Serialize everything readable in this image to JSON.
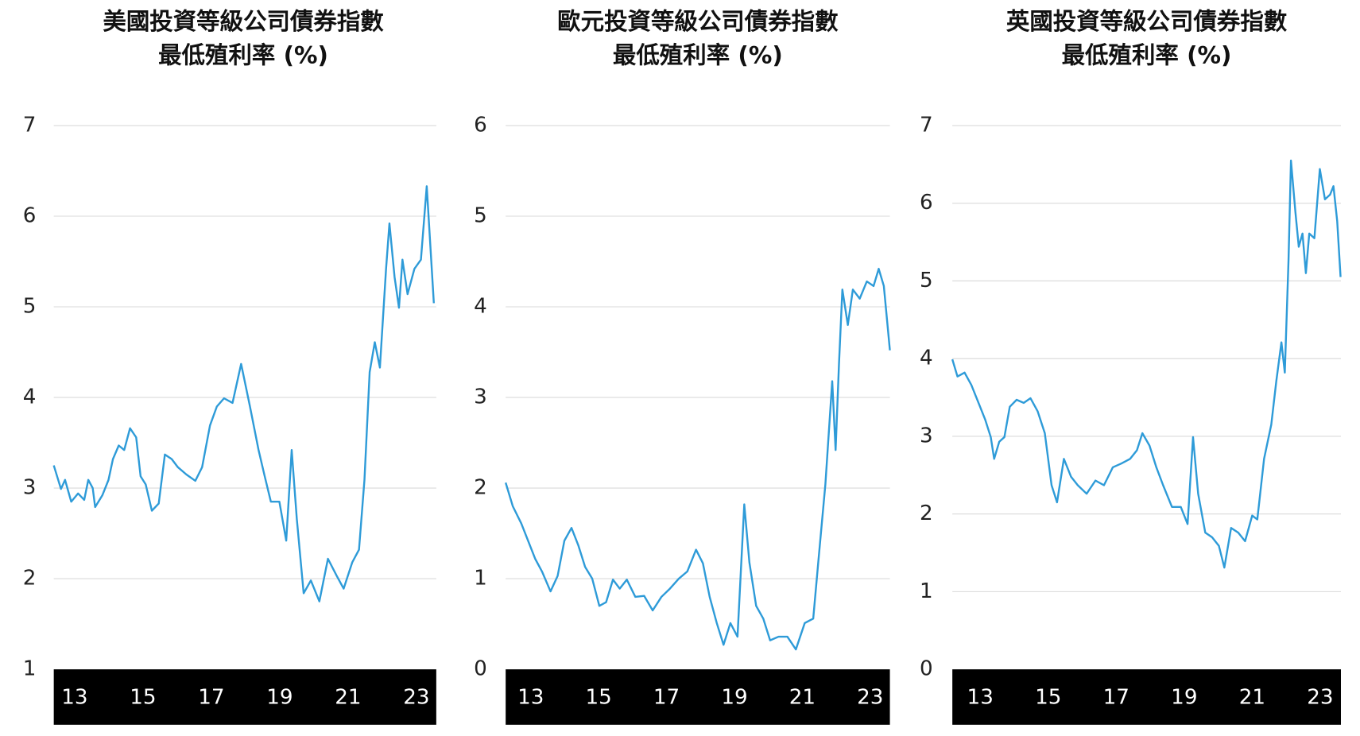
{
  "chart_data": [
    {
      "type": "line",
      "title": "美國投資等級公司債券指數",
      "subtitle": "最低殖利率 (%)",
      "xlim": [
        12.39,
        23.58
      ],
      "xticks": [
        13,
        15,
        17,
        19,
        21,
        23
      ],
      "ylim": [
        1,
        7
      ],
      "yticks": [
        1,
        2,
        3,
        4,
        5,
        6,
        7
      ],
      "grid": true,
      "series": [
        {
          "name": null,
          "color": "#2e9bd8",
          "x": [
            12.39,
            12.6,
            12.72,
            12.9,
            13.1,
            13.28,
            13.4,
            13.53,
            13.6,
            13.81,
            13.99,
            14.12,
            14.29,
            14.45,
            14.62,
            14.8,
            14.93,
            15.08,
            15.26,
            15.46,
            15.64,
            15.84,
            16.02,
            16.27,
            16.53,
            16.73,
            16.96,
            17.16,
            17.37,
            17.62,
            17.87,
            18.13,
            18.38,
            18.56,
            18.74,
            18.99,
            19.19,
            19.35,
            19.5,
            19.7,
            19.91,
            20.16,
            20.41,
            20.67,
            20.87,
            21.12,
            21.32,
            21.48,
            21.63,
            21.78,
            21.93,
            22.11,
            22.21,
            22.36,
            22.49,
            22.59,
            22.74,
            22.94,
            23.13,
            23.3,
            23.51
          ],
          "values": [
            3.25,
            2.99,
            3.09,
            2.85,
            2.94,
            2.87,
            3.09,
            3.0,
            2.79,
            2.92,
            3.09,
            3.32,
            3.47,
            3.42,
            3.66,
            3.56,
            3.13,
            3.04,
            2.75,
            2.83,
            3.37,
            3.32,
            3.23,
            3.15,
            3.08,
            3.23,
            3.69,
            3.9,
            3.99,
            3.94,
            4.37,
            3.9,
            3.42,
            3.13,
            2.85,
            2.85,
            2.42,
            3.42,
            2.66,
            1.84,
            1.98,
            1.75,
            2.22,
            2.03,
            1.89,
            2.18,
            2.32,
            3.09,
            4.28,
            4.61,
            4.33,
            5.42,
            5.92,
            5.33,
            4.99,
            5.52,
            5.14,
            5.42,
            5.52,
            6.33,
            5.04
          ]
        }
      ]
    },
    {
      "type": "line",
      "title": "歐元投資等級公司債券指數",
      "subtitle": "最低殖利率 (%)",
      "xlim": [
        12.26,
        23.58
      ],
      "xticks": [
        13,
        15,
        17,
        19,
        21,
        23
      ],
      "ylim": [
        0,
        6
      ],
      "yticks": [
        0,
        1,
        2,
        3,
        4,
        5,
        6
      ],
      "grid": true,
      "series": [
        {
          "name": null,
          "color": "#2e9bd8",
          "x": [
            12.26,
            12.47,
            12.72,
            12.92,
            13.13,
            13.33,
            13.58,
            13.79,
            13.99,
            14.2,
            14.4,
            14.6,
            14.81,
            15.02,
            15.22,
            15.42,
            15.62,
            15.83,
            16.08,
            16.34,
            16.59,
            16.85,
            17.1,
            17.36,
            17.61,
            17.87,
            18.07,
            18.27,
            18.48,
            18.68,
            18.88,
            19.09,
            19.29,
            19.44,
            19.64,
            19.85,
            20.05,
            20.3,
            20.56,
            20.81,
            21.07,
            21.32,
            21.47,
            21.68,
            21.88,
            21.98,
            22.08,
            22.18,
            22.34,
            22.49,
            22.69,
            22.9,
            23.1,
            23.25,
            23.4,
            23.58
          ],
          "values": [
            2.06,
            1.8,
            1.61,
            1.42,
            1.22,
            1.08,
            0.86,
            1.03,
            1.42,
            1.56,
            1.37,
            1.13,
            1.0,
            0.7,
            0.74,
            0.99,
            0.89,
            0.99,
            0.8,
            0.81,
            0.65,
            0.8,
            0.89,
            1.0,
            1.08,
            1.32,
            1.17,
            0.8,
            0.51,
            0.27,
            0.51,
            0.36,
            1.82,
            1.18,
            0.7,
            0.56,
            0.32,
            0.36,
            0.36,
            0.22,
            0.51,
            0.56,
            1.18,
            2.04,
            3.18,
            2.42,
            3.37,
            4.19,
            3.8,
            4.19,
            4.09,
            4.28,
            4.23,
            4.42,
            4.23,
            3.52
          ]
        }
      ]
    },
    {
      "type": "line",
      "title": "英國投資等級公司債券指數",
      "subtitle": "最低殖利率 (%)",
      "xlim": [
        12.18,
        23.61
      ],
      "xticks": [
        13,
        15,
        17,
        19,
        21,
        23
      ],
      "ylim": [
        0,
        7
      ],
      "yticks": [
        0,
        1,
        2,
        3,
        4,
        5,
        6,
        7
      ],
      "grid": true,
      "series": [
        {
          "name": null,
          "color": "#2e9bd8",
          "x": [
            12.18,
            12.33,
            12.54,
            12.74,
            12.95,
            13.15,
            13.31,
            13.41,
            13.56,
            13.71,
            13.87,
            14.07,
            14.28,
            14.48,
            14.69,
            14.9,
            15.1,
            15.26,
            15.46,
            15.67,
            15.87,
            16.13,
            16.39,
            16.64,
            16.9,
            17.15,
            17.41,
            17.61,
            17.77,
            17.98,
            18.18,
            18.38,
            18.64,
            18.9,
            19.1,
            19.26,
            19.41,
            19.62,
            19.82,
            20.02,
            20.18,
            20.38,
            20.59,
            20.79,
            21.0,
            21.15,
            21.35,
            21.56,
            21.71,
            21.86,
            21.96,
            22.07,
            22.14,
            22.27,
            22.37,
            22.48,
            22.58,
            22.68,
            22.83,
            22.99,
            23.14,
            23.29,
            23.39,
            23.5,
            23.6
          ],
          "values": [
            3.99,
            3.77,
            3.82,
            3.66,
            3.43,
            3.21,
            2.99,
            2.71,
            2.93,
            2.99,
            3.38,
            3.47,
            3.43,
            3.49,
            3.32,
            3.04,
            2.37,
            2.15,
            2.71,
            2.48,
            2.37,
            2.26,
            2.43,
            2.37,
            2.6,
            2.65,
            2.71,
            2.82,
            3.04,
            2.88,
            2.6,
            2.37,
            2.09,
            2.09,
            1.87,
            2.99,
            2.26,
            1.76,
            1.7,
            1.59,
            1.31,
            1.82,
            1.76,
            1.65,
            1.98,
            1.93,
            2.71,
            3.15,
            3.71,
            4.21,
            3.82,
            5.27,
            6.55,
            5.89,
            5.44,
            5.61,
            5.1,
            5.61,
            5.55,
            6.44,
            6.05,
            6.11,
            6.22,
            5.77,
            5.05
          ]
        }
      ]
    }
  ]
}
